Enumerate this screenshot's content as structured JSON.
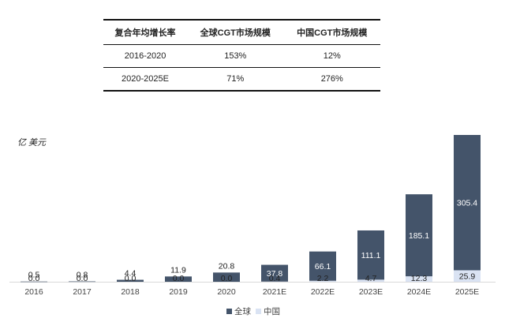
{
  "table": {
    "headers": [
      "复合年均增长率",
      "全球CGT市场规模",
      "中国CGT市场规模"
    ],
    "rows": [
      [
        "2016-2020",
        "153%",
        "12%"
      ],
      [
        "2020-2025E",
        "71%",
        "276%"
      ]
    ]
  },
  "chart_data": {
    "type": "bar",
    "stacked": true,
    "unit_label": "亿 美元",
    "categories": [
      "2016",
      "2017",
      "2018",
      "2019",
      "2020",
      "2021E",
      "2022E",
      "2023E",
      "2024E",
      "2025E"
    ],
    "series": [
      {
        "name": "全球",
        "color": "#44546a",
        "values": [
          0.5,
          0.8,
          4.4,
          11.9,
          20.8,
          37.8,
          66.1,
          111.1,
          185.1,
          305.4
        ]
      },
      {
        "name": "中国",
        "color": "#dae3f3",
        "values": [
          0.0,
          0.0,
          0.0,
          0.0,
          0.0,
          0.4,
          2.2,
          4.7,
          12.3,
          25.9
        ]
      }
    ],
    "ylim": [
      0,
      331.3
    ],
    "grid": false,
    "legend_position": "bottom"
  }
}
